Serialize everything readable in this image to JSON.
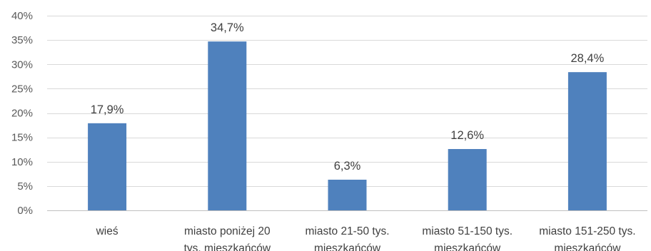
{
  "chart_data": {
    "type": "bar",
    "categories": [
      [
        "wieś"
      ],
      [
        "miasto poniżej 20",
        "tys. mieszkańców"
      ],
      [
        "miasto 21-50 tys.",
        "mieszkańców"
      ],
      [
        "miasto 51-150 tys.",
        "mieszkańców"
      ],
      [
        "miasto 151-250 tys.",
        "mieszkańców"
      ]
    ],
    "values": [
      17.9,
      34.7,
      6.3,
      12.6,
      28.4
    ],
    "data_labels": [
      "17,9%",
      "34,7%",
      "6,3%",
      "12,6%",
      "28,4%"
    ],
    "ylim": [
      0,
      40
    ],
    "yticks": [
      0,
      5,
      10,
      15,
      20,
      25,
      30,
      35,
      40
    ],
    "ytick_labels": [
      "0%",
      "5%",
      "10%",
      "15%",
      "20%",
      "25%",
      "30%",
      "35%",
      "40%"
    ],
    "bar_color": "#4f81bd",
    "grid": true,
    "legend": "none",
    "title": "",
    "xlabel": "",
    "ylabel": ""
  }
}
